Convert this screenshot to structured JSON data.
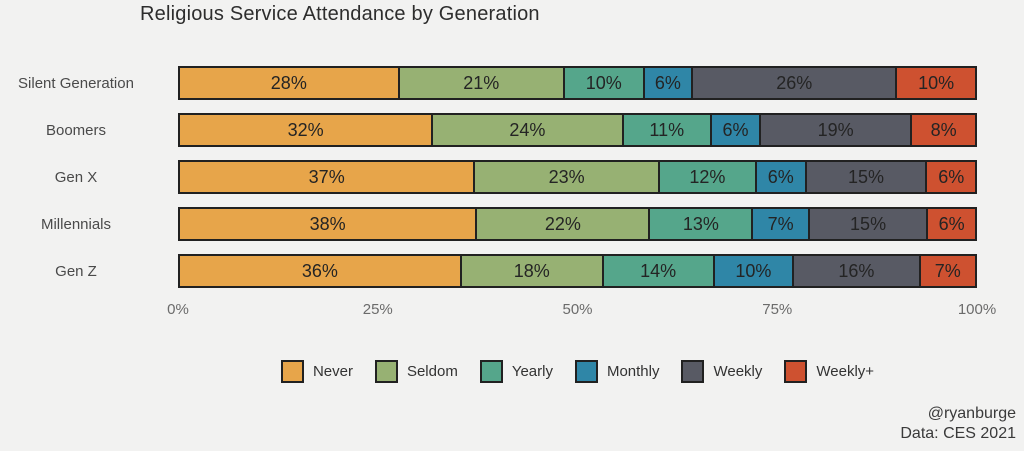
{
  "page": {
    "background": "#f2f2f1"
  },
  "chart_data": {
    "type": "bar",
    "orientation": "horizontal",
    "stacked": true,
    "normalized": true,
    "title": "Religious Service Attendance by Generation",
    "categories": [
      "Silent Generation",
      "Boomers",
      "Gen X",
      "Millennials",
      "Gen Z"
    ],
    "series": [
      {
        "name": "Never",
        "color": "#E7A54A",
        "values": [
          28,
          32,
          37,
          38,
          36
        ]
      },
      {
        "name": "Seldom",
        "color": "#97B173",
        "values": [
          21,
          24,
          23,
          22,
          18
        ]
      },
      {
        "name": "Yearly",
        "color": "#55A68B",
        "values": [
          10,
          11,
          12,
          13,
          14
        ]
      },
      {
        "name": "Monthly",
        "color": "#2F86A7",
        "values": [
          6,
          6,
          6,
          7,
          10
        ]
      },
      {
        "name": "Weekly",
        "color": "#585A64",
        "values": [
          26,
          19,
          15,
          15,
          16
        ]
      },
      {
        "name": "Weekly+",
        "color": "#CE5130",
        "values": [
          10,
          8,
          6,
          6,
          7
        ]
      }
    ],
    "value_suffix": "%",
    "x_ticks": [
      "0%",
      "25%",
      "50%",
      "75%",
      "100%"
    ],
    "xlim": [
      0,
      100
    ],
    "legend_position": "bottom",
    "grid": false
  },
  "attribution": {
    "line1": "@ryanburge",
    "line2": "Data: CES 2021"
  }
}
